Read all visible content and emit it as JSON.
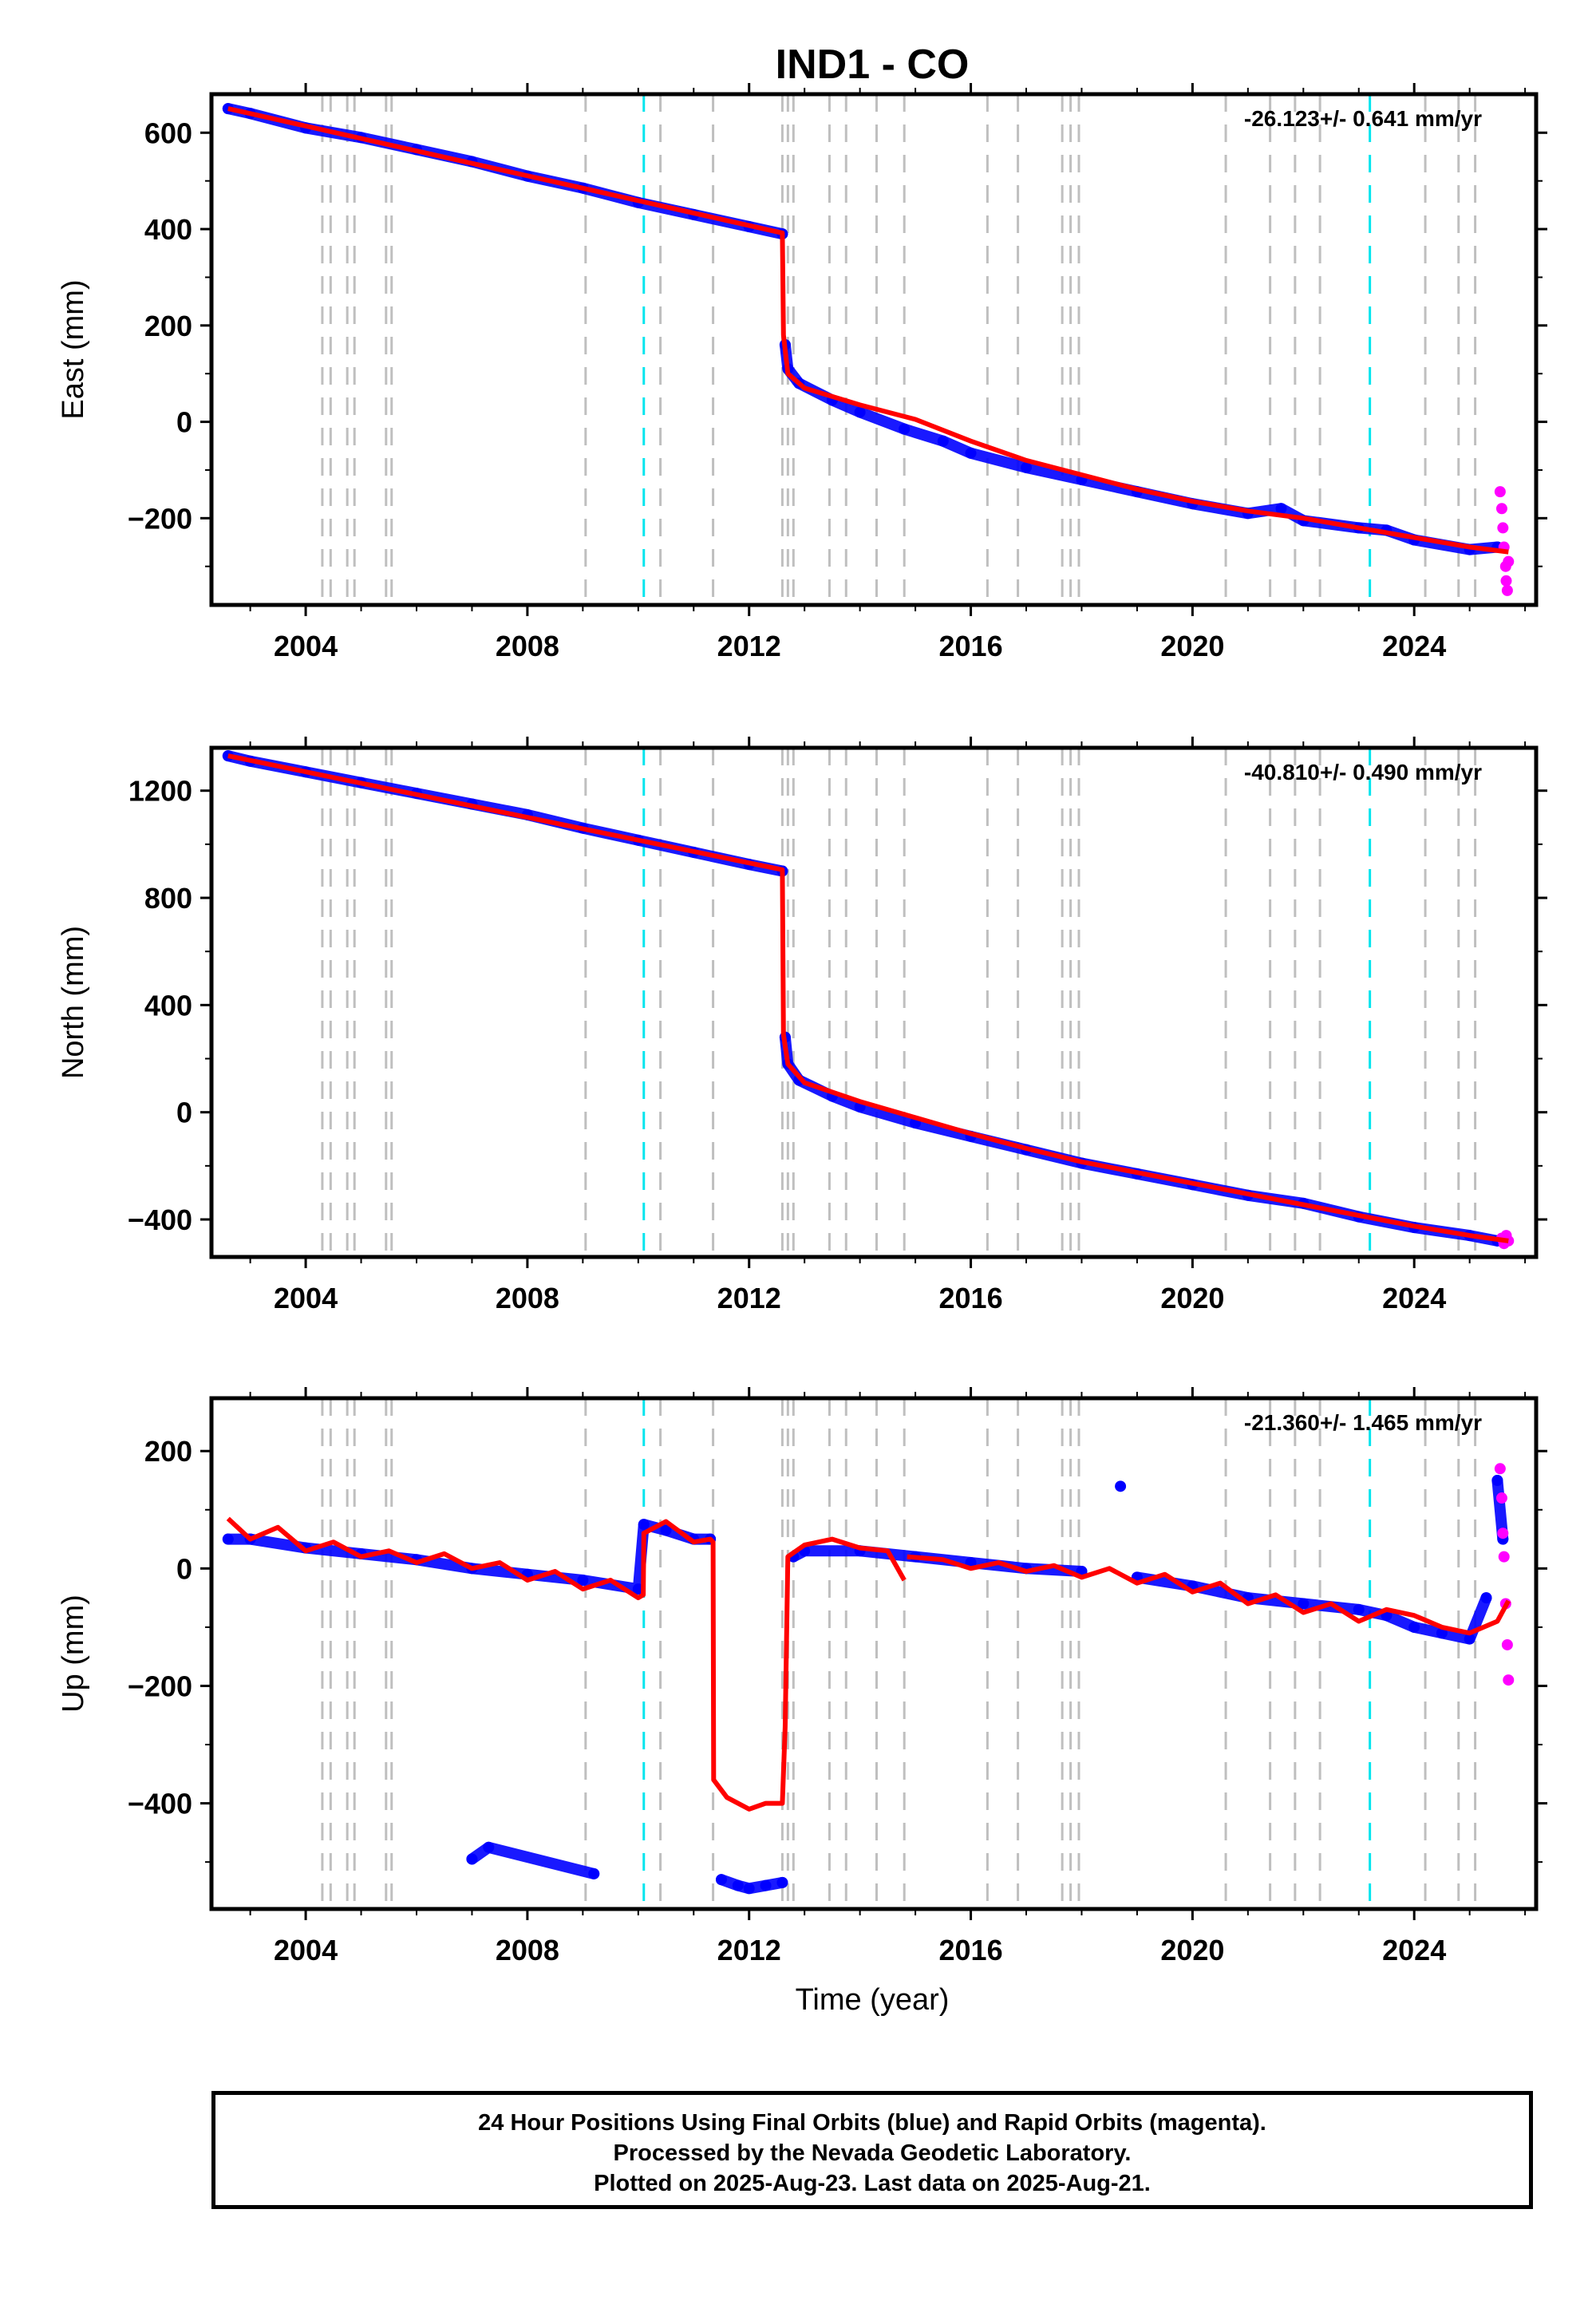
{
  "chart_data": {
    "type": "scatter",
    "title": "IND1 - CO",
    "xlabel": "Time (year)",
    "xlim": [
      2002.3,
      2026.2
    ],
    "xticks": [
      2004,
      2008,
      2012,
      2016,
      2020,
      2024
    ],
    "colors": {
      "final": "#0000ff",
      "rapid": "#ff00ff",
      "model": "#ff0000",
      "equipment_change": "#bfbfbf",
      "earthquake": "#00e5ee"
    },
    "gray_event_lines": [
      2004.3,
      2004.45,
      2004.75,
      2004.88,
      2005.45,
      2005.55,
      2009.05,
      2010.4,
      2011.35,
      2012.6,
      2012.7,
      2012.8,
      2013.45,
      2013.75,
      2014.3,
      2014.8,
      2016.3,
      2016.85,
      2017.65,
      2017.8,
      2017.95,
      2020.6,
      2021.4,
      2021.85,
      2022.3,
      2024.2,
      2024.8,
      2025.1
    ],
    "cyan_event_lines": [
      2010.1,
      2023.2
    ],
    "panels": [
      {
        "ylabel": "East (mm)",
        "rate": "-26.123+/- 0.641 mm/yr",
        "ylim": [
          -380,
          680
        ],
        "yticks": [
          600,
          400,
          200,
          0,
          -200
        ],
        "final_series": {
          "x": [
            2002.6,
            2003.0,
            2004.0,
            2005.0,
            2006.0,
            2007.0,
            2008.0,
            2009.0,
            2010.0,
            2011.0,
            2012.0,
            2012.6,
            2012.65,
            2012.7,
            2012.9,
            2013.5,
            2014.0,
            2014.8,
            2015.5,
            2016.0,
            2017.0,
            2018.0,
            2019.0,
            2020.0,
            2021.0,
            2021.6,
            2022.0,
            2023.0,
            2023.5,
            2024.0,
            2025.0,
            2025.5
          ],
          "y": [
            650,
            640,
            610,
            590,
            565,
            540,
            510,
            485,
            455,
            430,
            405,
            390,
            160,
            110,
            80,
            45,
            20,
            -15,
            -40,
            -65,
            -95,
            -120,
            -145,
            -170,
            -190,
            -180,
            -205,
            -220,
            -225,
            -245,
            -265,
            -260
          ]
        },
        "rapid_series": {
          "x": [
            2025.55,
            2025.58,
            2025.6,
            2025.62,
            2025.65,
            2025.66,
            2025.68,
            2025.7
          ],
          "y": [
            -145,
            -180,
            -220,
            -260,
            -300,
            -330,
            -350,
            -290
          ]
        },
        "model_series": {
          "x": [
            2002.6,
            2012.6,
            2012.62,
            2012.7,
            2013.0,
            2014.0,
            2015.0,
            2016.0,
            2017.0,
            2018.0,
            2019.0,
            2020.0,
            2021.0,
            2022.0,
            2023.0,
            2024.0,
            2025.0,
            2025.7
          ],
          "y": [
            650,
            392,
            180,
            100,
            70,
            35,
            5,
            -40,
            -80,
            -110,
            -140,
            -165,
            -185,
            -200,
            -220,
            -240,
            -260,
            -270
          ]
        }
      },
      {
        "ylabel": "North (mm)",
        "rate": "-40.810+/- 0.490 mm/yr",
        "ylim": [
          -540,
          1360
        ],
        "yticks": [
          1200,
          800,
          400,
          0,
          -400
        ],
        "final_series": {
          "x": [
            2002.6,
            2003.0,
            2004.0,
            2005.0,
            2006.0,
            2007.0,
            2008.0,
            2009.0,
            2010.0,
            2011.0,
            2012.0,
            2012.6,
            2012.65,
            2012.7,
            2012.9,
            2013.5,
            2014.0,
            2015.0,
            2016.0,
            2017.0,
            2018.0,
            2019.0,
            2020.0,
            2021.0,
            2022.0,
            2023.0,
            2024.0,
            2025.0,
            2025.5
          ],
          "y": [
            1330,
            1310,
            1270,
            1230,
            1190,
            1150,
            1110,
            1060,
            1015,
            970,
            925,
            900,
            280,
            180,
            120,
            60,
            20,
            -40,
            -90,
            -140,
            -190,
            -230,
            -270,
            -310,
            -340,
            -390,
            -430,
            -460,
            -480
          ]
        },
        "rapid_series": {
          "x": [
            2025.58,
            2025.62,
            2025.66,
            2025.7
          ],
          "y": [
            -470,
            -490,
            -460,
            -480
          ]
        },
        "model_series": {
          "x": [
            2002.6,
            2012.6,
            2012.62,
            2012.7,
            2013.0,
            2014.0,
            2015.0,
            2016.0,
            2017.0,
            2018.0,
            2019.0,
            2020.0,
            2021.0,
            2022.0,
            2023.0,
            2024.0,
            2025.0,
            2025.7
          ],
          "y": [
            1330,
            905,
            290,
            180,
            110,
            40,
            -20,
            -80,
            -135,
            -185,
            -225,
            -265,
            -305,
            -345,
            -385,
            -425,
            -460,
            -480
          ]
        }
      },
      {
        "ylabel": "Up (mm)",
        "rate": "-21.360+/- 1.465 mm/yr",
        "ylim": [
          -580,
          290
        ],
        "yticks": [
          200,
          0,
          -200,
          -400
        ],
        "final_series": {
          "x": [
            2002.6,
            2003.0,
            2004.0,
            2005.0,
            2006.0,
            2007.0,
            2008.0,
            2009.0,
            2010.0,
            2010.1,
            2010.5,
            2011.0,
            2011.3,
            2011.5,
            2011.8,
            2012.0,
            2012.3,
            2012.6,
            2012.8,
            2013.0,
            2014.0,
            2015.0,
            2016.0,
            2017.0,
            2018.0,
            2018.7,
            2019.0,
            2020.0,
            2021.0,
            2022.0,
            2023.0,
            2023.5,
            2024.0,
            2024.5,
            2025.0,
            2025.3,
            2025.5,
            2025.6,
            2007.0,
            2007.3,
            2009.2
          ],
          "y": [
            50,
            50,
            35,
            25,
            15,
            0,
            -10,
            -20,
            -35,
            75,
            65,
            50,
            50,
            -530,
            -540,
            -545,
            -540,
            -535,
            20,
            30,
            30,
            20,
            10,
            0,
            -5,
            140,
            -15,
            -30,
            -50,
            -60,
            -70,
            -80,
            -100,
            -110,
            -120,
            -50,
            150,
            50,
            -495,
            -475,
            -520
          ]
        },
        "rapid_series": {
          "x": [
            2025.55,
            2025.58,
            2025.6,
            2025.62,
            2025.65,
            2025.68,
            2025.7
          ],
          "y": [
            170,
            120,
            60,
            20,
            -60,
            -130,
            -190
          ]
        },
        "model_series": {
          "x": [
            2002.6,
            2003.0,
            2003.5,
            2004.0,
            2004.5,
            2005.0,
            2005.5,
            2006.0,
            2006.5,
            2007.0,
            2007.5,
            2008.0,
            2008.5,
            2009.0,
            2009.5,
            2010.0,
            2010.09,
            2010.1,
            2010.5,
            2011.0,
            2011.3,
            2011.35,
            2011.36,
            2011.6,
            2012.0,
            2012.3,
            2012.6,
            2012.65,
            2012.7,
            2013.0,
            2013.5,
            2014.0,
            2014.5,
            2014.8,
            null,
            2014.85,
            2015.5,
            2016.0,
            2016.5,
            2017.0,
            2017.5,
            2018.0,
            2018.5,
            2019.0,
            2019.5,
            2020.0,
            2020.5,
            2021.0,
            2021.5,
            2022.0,
            2022.5,
            2023.0,
            2023.5,
            2024.0,
            2024.5,
            2025.0,
            2025.5,
            2025.7
          ],
          "y": [
            85,
            50,
            70,
            30,
            45,
            20,
            30,
            10,
            25,
            0,
            10,
            -20,
            -5,
            -35,
            -20,
            -50,
            -45,
            60,
            80,
            45,
            50,
            45,
            -360,
            -390,
            -410,
            -400,
            -400,
            -270,
            20,
            40,
            50,
            35,
            30,
            -20,
            null,
            20,
            15,
            0,
            10,
            -5,
            5,
            -15,
            0,
            -25,
            -10,
            -40,
            -25,
            -60,
            -45,
            -75,
            -60,
            -90,
            -70,
            -80,
            -100,
            -110,
            -90,
            -55
          ]
        }
      }
    ],
    "footer_lines": [
      "24 Hour Positions Using Final Orbits (blue) and Rapid Orbits (magenta).",
      "Processed by the Nevada Geodetic Laboratory.",
      "Plotted on 2025-Aug-23. Last data on 2025-Aug-21."
    ]
  }
}
